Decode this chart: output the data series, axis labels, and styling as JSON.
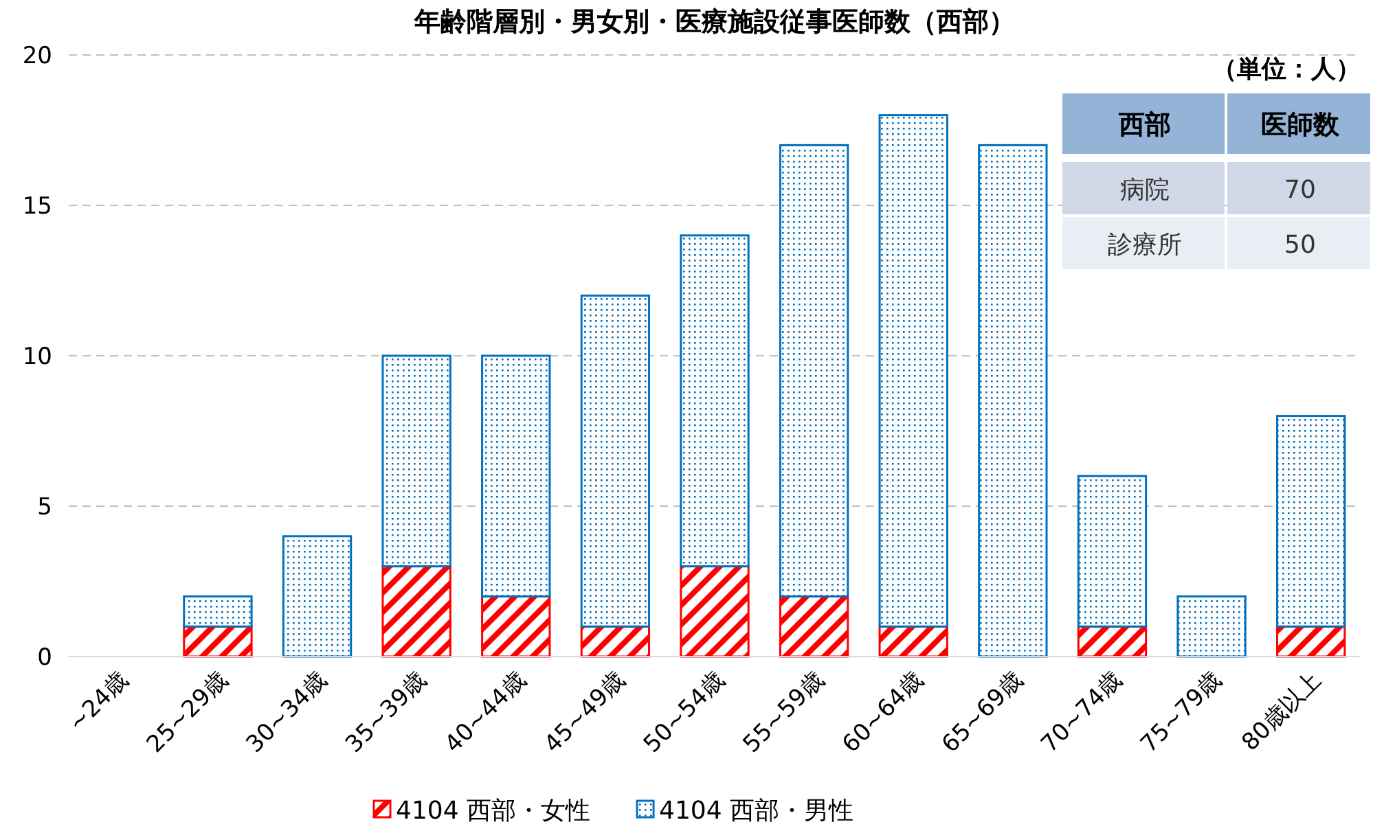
{
  "chart_data": [
    {
      "type": "bar",
      "title": "年齢階層別・男女別・医療施設従事医師数（西部）",
      "categories": [
        "~24歳",
        "25~29歳",
        "30~34歳",
        "35~39歳",
        "40~44歳",
        "45~49歳",
        "50~54歳",
        "55~59歳",
        "60~64歳",
        "65~69歳",
        "70~74歳",
        "75~79歳",
        "80歳以上"
      ],
      "stacked": true,
      "ylim": [
        0,
        20
      ],
      "yticks": [
        0,
        5,
        10,
        15,
        20
      ],
      "grid": "y",
      "legend": "bottom",
      "series": [
        {
          "name": "4104  西部・女性",
          "color": "#ff0000",
          "values": [
            0,
            1,
            0,
            3,
            2,
            1,
            3,
            2,
            1,
            0,
            1,
            0,
            1
          ]
        },
        {
          "name": "4104  西部・男性",
          "color": "#0070c0",
          "values": [
            0,
            1,
            4,
            7,
            8,
            11,
            11,
            15,
            17,
            17,
            5,
            2,
            7
          ]
        }
      ]
    },
    {
      "type": "other",
      "annotations": [
        "（単位：人）",
        "西部",
        "医師数",
        "病院",
        "70",
        "診療所",
        "50"
      ]
    }
  ]
}
